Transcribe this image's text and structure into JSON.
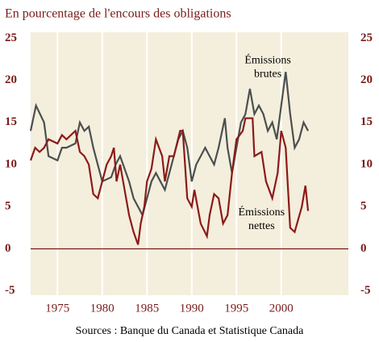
{
  "chart_data": {
    "type": "line",
    "title": "En pourcentage de l'encours des obligations",
    "source": "Sources : Banque du Canada et Statistique Canada",
    "xlim": [
      1972,
      2007.5
    ],
    "xticks": [
      1975,
      1980,
      1985,
      1990,
      1995,
      2000
    ],
    "ylim": [
      -5.5,
      25.7
    ],
    "yticks": [
      -5,
      0,
      5,
      10,
      15,
      20,
      25
    ],
    "grid": true,
    "series": [
      {
        "name": "Émissions brutes",
        "color": "#4a5050",
        "x": [
          1972,
          1972.6,
          1973.5,
          1974,
          1975,
          1975.5,
          1976,
          1977,
          1977.5,
          1978,
          1978.5,
          1979,
          1979.5,
          1980,
          1981,
          1981.5,
          1982,
          1983,
          1983.5,
          1984,
          1984.5,
          1985,
          1985.5,
          1986,
          1986.5,
          1987,
          1987.5,
          1988,
          1988.5,
          1989,
          1989.5,
          1990,
          1990.5,
          1991,
          1991.5,
          1992,
          1992.5,
          1993,
          1993.7,
          1994,
          1994.5,
          1995,
          1995.5,
          1996,
          1996.5,
          1997,
          1997.5,
          1998,
          1998.5,
          1999,
          1999.5,
          2000,
          2000.5,
          2001,
          2001.5,
          2002,
          2002.5,
          2003
        ],
        "values": [
          14,
          17,
          15,
          11,
          10.5,
          12,
          12,
          12.5,
          15,
          14,
          14.5,
          12,
          10,
          8,
          8.5,
          10,
          11,
          8,
          6,
          5,
          4,
          6,
          8,
          9,
          8,
          7,
          9,
          11,
          13,
          14,
          12,
          8,
          10,
          11,
          12,
          11,
          10,
          12,
          15.5,
          12,
          9,
          12,
          15,
          16,
          19,
          16,
          17,
          16,
          14,
          15,
          13,
          17,
          21,
          16,
          12,
          13,
          15,
          14
        ]
      },
      {
        "name": "Émissions nettes",
        "color": "#8b1a1a",
        "x": [
          1972,
          1972.5,
          1973,
          1973.5,
          1974,
          1975,
          1975.5,
          1976,
          1977,
          1977.5,
          1978,
          1978.5,
          1979,
          1979.5,
          1980,
          1980.5,
          1981,
          1981.3,
          1981.6,
          1982,
          1982.5,
          1983,
          1983.5,
          1984,
          1984.3,
          1984.7,
          1985,
          1985.5,
          1986,
          1986.7,
          1987,
          1987.5,
          1988,
          1988.7,
          1989,
          1989.5,
          1990,
          1990.3,
          1991,
          1991.7,
          1992,
          1992.5,
          1993,
          1993.5,
          1994,
          1994.5,
          1995,
          1995.7,
          1996,
          1996.8,
          1997,
          1997.8,
          1998.3,
          1999,
          1999.6,
          2000,
          2000.5,
          2001,
          2001.5,
          2002.3,
          2002.7,
          2003
        ],
        "values": [
          10.5,
          12,
          11.5,
          12,
          13,
          12.5,
          13.5,
          13,
          14,
          11.5,
          11,
          10,
          6.5,
          6,
          8,
          10,
          11,
          12,
          8,
          10,
          7,
          4,
          2,
          0.5,
          3,
          5,
          8,
          9.5,
          13,
          11,
          8,
          11,
          11,
          14,
          14,
          6,
          5,
          7,
          3,
          1.5,
          4,
          6.5,
          6,
          3,
          4,
          9,
          13,
          14,
          15.5,
          15.5,
          11,
          11.5,
          8,
          6,
          9,
          14,
          12,
          2.5,
          2,
          5,
          7.5,
          4.5
        ]
      }
    ],
    "annotations": [
      {
        "text": [
          "Émissions",
          "brutes"
        ],
        "x": 1998.5,
        "y": 22.3
      },
      {
        "text": [
          "Émissions",
          "nettes"
        ],
        "x": 1997.8,
        "y": 4.3
      }
    ]
  }
}
